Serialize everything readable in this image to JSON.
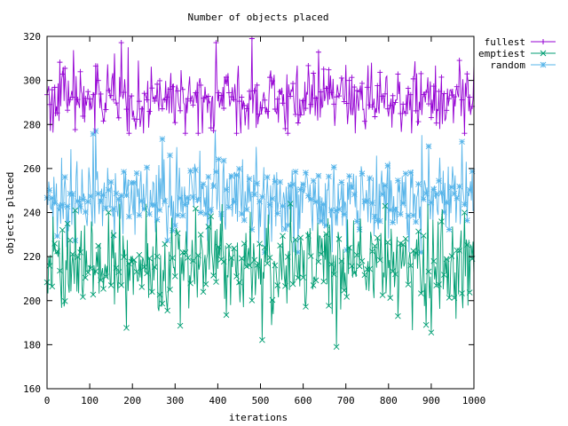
{
  "chart_data": {
    "type": "line",
    "title": "Number of objects placed",
    "xlabel": "iterations",
    "ylabel": "objects placed",
    "xlim": [
      0,
      1000
    ],
    "ylim": [
      160,
      320
    ],
    "xticks": [
      0,
      100,
      200,
      300,
      400,
      500,
      600,
      700,
      800,
      900,
      1000
    ],
    "yticks": [
      160,
      180,
      200,
      220,
      240,
      260,
      280,
      300,
      320
    ],
    "grid": false,
    "legend_position": "top-right",
    "series": [
      {
        "name": "fullest",
        "color": "#9400d3",
        "marker": "+",
        "mean": 292,
        "spread": 7,
        "min": 276,
        "max": 319
      },
      {
        "name": "emptiest",
        "color": "#009e73",
        "marker": "x",
        "mean": 216,
        "spread": 11,
        "min": 179,
        "max": 244
      },
      {
        "name": "random",
        "color": "#56b4e9",
        "marker": "*",
        "mean": 246,
        "spread": 9,
        "min": 222,
        "max": 278
      }
    ]
  }
}
